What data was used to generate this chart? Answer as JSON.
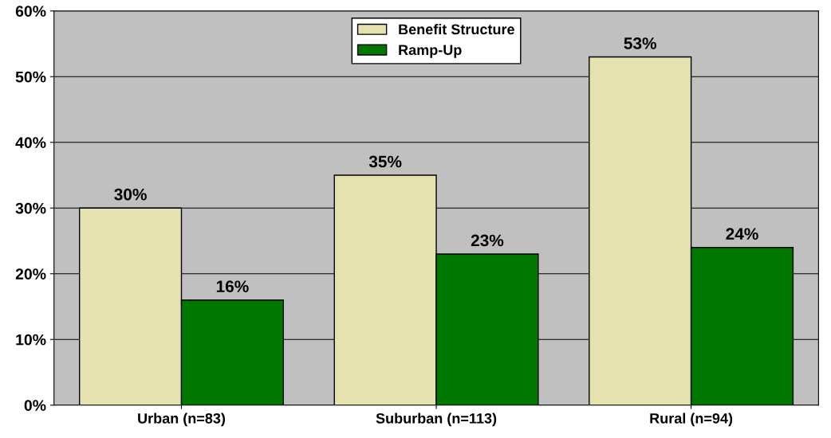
{
  "chart_data": {
    "type": "bar",
    "categories": [
      "Urban (n=83)",
      "Suburban (n=113)",
      "Rural (n=94)"
    ],
    "series": [
      {
        "name": "Benefit Structure",
        "color": "#e6e2b0",
        "values": [
          30,
          35,
          53
        ],
        "value_labels": [
          "30%",
          "35%",
          "53%"
        ]
      },
      {
        "name": "Ramp-Up",
        "color": "#007800",
        "values": [
          16,
          23,
          24
        ],
        "value_labels": [
          "16%",
          "23%",
          "24%"
        ]
      }
    ],
    "ylim": [
      0,
      60
    ],
    "yticks": [
      {
        "value": 0,
        "label": "0%"
      },
      {
        "value": 10,
        "label": "10%"
      },
      {
        "value": 20,
        "label": "20%"
      },
      {
        "value": 30,
        "label": "30%"
      },
      {
        "value": 40,
        "label": "40%"
      },
      {
        "value": 50,
        "label": "50%"
      },
      {
        "value": 60,
        "label": "60%"
      }
    ],
    "grid": "y",
    "legend": "top"
  }
}
